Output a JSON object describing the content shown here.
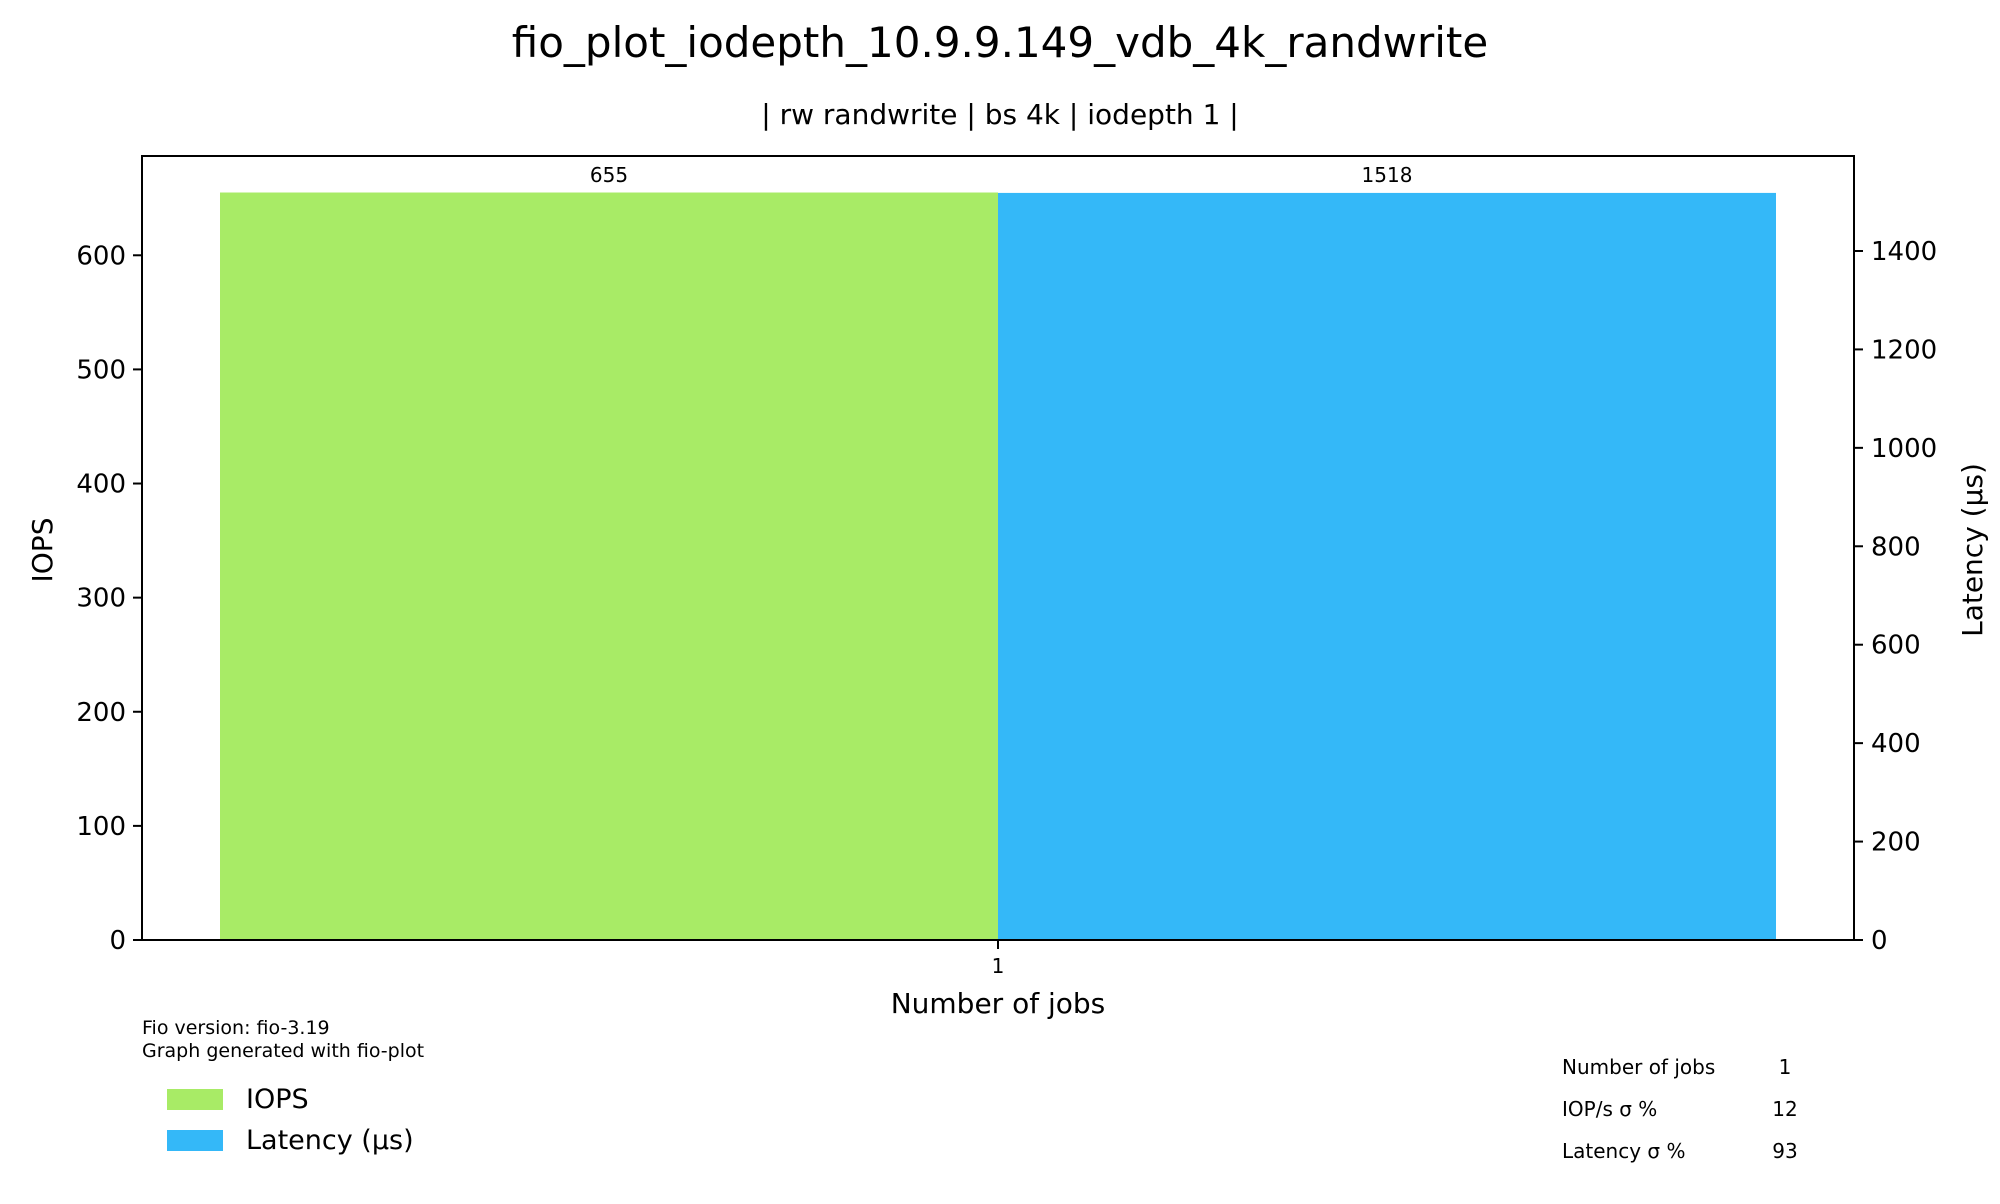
{
  "chart_data": {
    "type": "bar",
    "title": "fio_plot_iodepth_10.9.9.149_vdb_4k_randwrite",
    "subtitle": "| rw randwrite | bs 4k | iodepth 1 |",
    "xlabel": "Number of jobs",
    "ylabel": "IOPS",
    "ylabel_right": "Latency (µs)",
    "categories": [
      "1"
    ],
    "ylim": [
      0,
      687
    ],
    "ylim_right": [
      0,
      1593
    ],
    "yticks": [
      0,
      100,
      200,
      300,
      400,
      500,
      600
    ],
    "yticks_right": [
      0,
      200,
      400,
      600,
      800,
      1000,
      1200,
      1400
    ],
    "series": [
      {
        "name": "IOPS",
        "values": [
          655
        ],
        "labels": [
          "655"
        ],
        "axis": "left",
        "color": "#a8eb66"
      },
      {
        "name": "Latency (µs)",
        "values": [
          1518
        ],
        "labels": [
          "1518"
        ],
        "axis": "right",
        "color": "#34b8f8"
      }
    ],
    "grid": false,
    "legend_position": "bottom-left",
    "footnote": [
      "Fio version: fio-3.19",
      "Graph generated with fio-plot"
    ],
    "stats_table": [
      {
        "label": "Number of jobs",
        "value": "1"
      },
      {
        "label": "IOP/s σ %",
        "value": "12"
      },
      {
        "label": "Latency σ %",
        "value": "93"
      }
    ]
  }
}
